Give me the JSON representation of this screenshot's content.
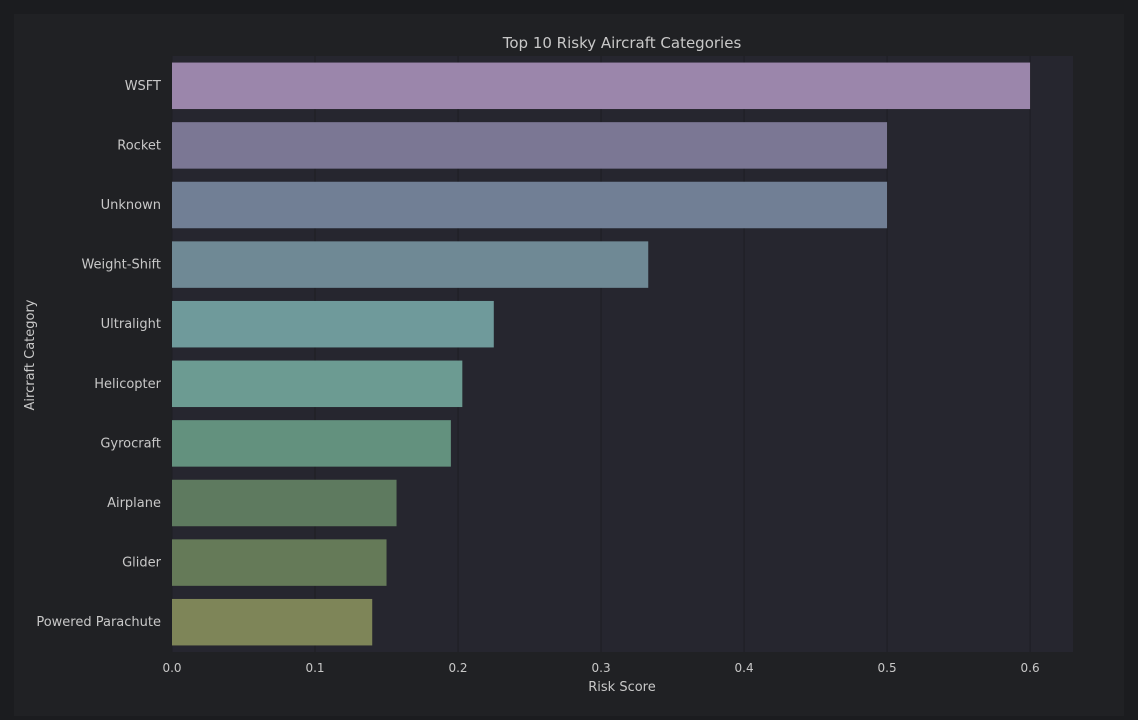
{
  "chart_data": {
    "type": "bar",
    "orientation": "horizontal",
    "title": "Top 10 Risky Aircraft Categories",
    "xlabel": "Risk Score",
    "ylabel": "Aircraft Category",
    "xlim": [
      0.0,
      0.63
    ],
    "xticks": [
      "0.0",
      "0.1",
      "0.2",
      "0.3",
      "0.4",
      "0.5",
      "0.6"
    ],
    "grid": true,
    "categories": [
      "WSFT",
      "Rocket",
      "Unknown",
      "Weight-Shift",
      "Ultralight",
      "Helicopter",
      "Gyrocraft",
      "Airplane",
      "Glider",
      "Powered Parachute"
    ],
    "values": [
      0.6,
      0.5,
      0.5,
      0.333,
      0.225,
      0.203,
      0.195,
      0.157,
      0.15,
      0.14
    ],
    "colors": [
      "#9b86ab",
      "#7b7794",
      "#717f95",
      "#6f8995",
      "#6f9a9b",
      "#6c9b92",
      "#63917e",
      "#5e7a5f",
      "#657a58",
      "#7e8558"
    ]
  },
  "style": {
    "background": "#1b1c1f",
    "plot_background": "#26262f",
    "grid_color": "#1e1e23",
    "text_color": "#c8c8c8"
  }
}
